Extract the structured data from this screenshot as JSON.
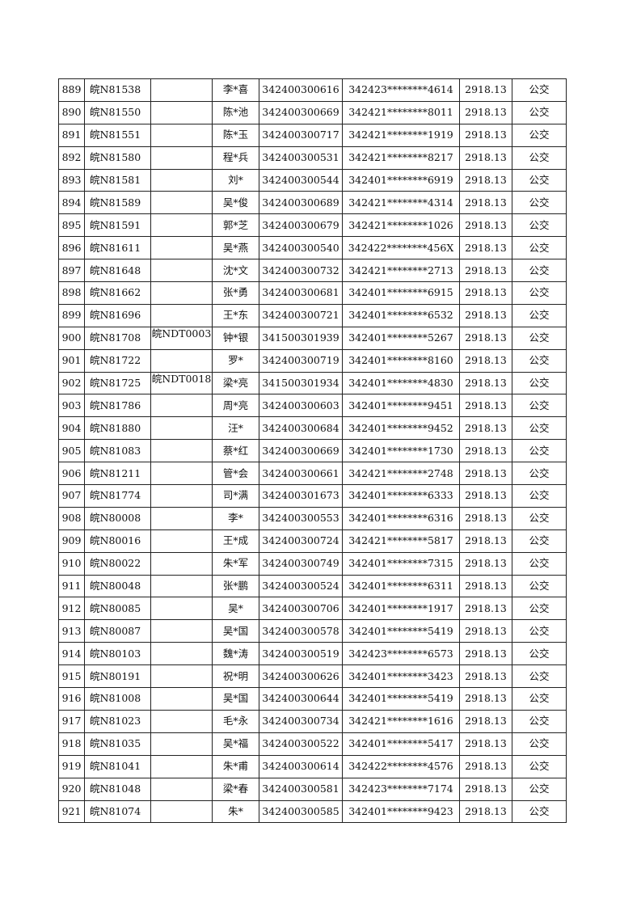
{
  "table": {
    "rows": [
      [
        "889",
        "皖N81538",
        "",
        "李*喜",
        "342400300616",
        "342423********4614",
        "2918.13",
        "公交"
      ],
      [
        "890",
        "皖N81550",
        "",
        "陈*池",
        "342400300669",
        "342421********8011",
        "2918.13",
        "公交"
      ],
      [
        "891",
        "皖N81551",
        "",
        "陈*玉",
        "342400300717",
        "342421********1919",
        "2918.13",
        "公交"
      ],
      [
        "892",
        "皖N81580",
        "",
        "程*兵",
        "342400300531",
        "342421********8217",
        "2918.13",
        "公交"
      ],
      [
        "893",
        "皖N81581",
        "",
        "刘*",
        "342400300544",
        "342401********6919",
        "2918.13",
        "公交"
      ],
      [
        "894",
        "皖N81589",
        "",
        "吴*俊",
        "342400300689",
        "342421********4314",
        "2918.13",
        "公交"
      ],
      [
        "895",
        "皖N81591",
        "",
        "郭*芝",
        "342400300679",
        "342421********1026",
        "2918.13",
        "公交"
      ],
      [
        "896",
        "皖N81611",
        "",
        "吴*燕",
        "342400300540",
        "342422********456X",
        "2918.13",
        "公交"
      ],
      [
        "897",
        "皖N81648",
        "",
        "沈*文",
        "342400300732",
        "342421********2713",
        "2918.13",
        "公交"
      ],
      [
        "898",
        "皖N81662",
        "",
        "张*勇",
        "342400300681",
        "342401********6915",
        "2918.13",
        "公交"
      ],
      [
        "899",
        "皖N81696",
        "",
        "王*东",
        "342400300721",
        "342401********6532",
        "2918.13",
        "公交"
      ],
      [
        "900",
        "皖N81708",
        "皖NDT0003",
        "钟*银",
        "341500301939",
        "342401********5267",
        "2918.13",
        "公交"
      ],
      [
        "901",
        "皖N81722",
        "",
        "罗*",
        "342400300719",
        "342401********8160",
        "2918.13",
        "公交"
      ],
      [
        "902",
        "皖N81725",
        "皖NDT0018",
        "梁*亮",
        "341500301934",
        "342401********4830",
        "2918.13",
        "公交"
      ],
      [
        "903",
        "皖N81786",
        "",
        "周*亮",
        "342400300603",
        "342401********9451",
        "2918.13",
        "公交"
      ],
      [
        "904",
        "皖N81880",
        "",
        "汪*",
        "342400300684",
        "342401********9452",
        "2918.13",
        "公交"
      ],
      [
        "905",
        "皖N81083",
        "",
        "蔡*红",
        "342400300669",
        "342401********1730",
        "2918.13",
        "公交"
      ],
      [
        "906",
        "皖N81211",
        "",
        "管*会",
        "342400300661",
        "342421********2748",
        "2918.13",
        "公交"
      ],
      [
        "907",
        "皖N81774",
        "",
        "司*满",
        "342400301673",
        "342401********6333",
        "2918.13",
        "公交"
      ],
      [
        "908",
        "皖N80008",
        "",
        "李*",
        "342400300553",
        "342401********6316",
        "2918.13",
        "公交"
      ],
      [
        "909",
        "皖N80016",
        "",
        "王*成",
        "342400300724",
        "342421********5817",
        "2918.13",
        "公交"
      ],
      [
        "910",
        "皖N80022",
        "",
        "朱*军",
        "342400300749",
        "342401********7315",
        "2918.13",
        "公交"
      ],
      [
        "911",
        "皖N80048",
        "",
        "张*鹏",
        "342400300524",
        "342401********6311",
        "2918.13",
        "公交"
      ],
      [
        "912",
        "皖N80085",
        "",
        "吴*",
        "342400300706",
        "342401********1917",
        "2918.13",
        "公交"
      ],
      [
        "913",
        "皖N80087",
        "",
        "吴*国",
        "342400300578",
        "342401********5419",
        "2918.13",
        "公交"
      ],
      [
        "914",
        "皖N80103",
        "",
        "魏*涛",
        "342400300519",
        "342423********6573",
        "2918.13",
        "公交"
      ],
      [
        "915",
        "皖N80191",
        "",
        "祝*明",
        "342400300626",
        "342401********3423",
        "2918.13",
        "公交"
      ],
      [
        "916",
        "皖N81008",
        "",
        "吴*国",
        "342400300644",
        "342401********5419",
        "2918.13",
        "公交"
      ],
      [
        "917",
        "皖N81023",
        "",
        "毛*永",
        "342400300734",
        "342421********1616",
        "2918.13",
        "公交"
      ],
      [
        "918",
        "皖N81035",
        "",
        "吴*福",
        "342400300522",
        "342401********5417",
        "2918.13",
        "公交"
      ],
      [
        "919",
        "皖N81041",
        "",
        "朱*甫",
        "342400300614",
        "342422********4576",
        "2918.13",
        "公交"
      ],
      [
        "920",
        "皖N81048",
        "",
        "梁*春",
        "342400300581",
        "342423********7174",
        "2918.13",
        "公交"
      ],
      [
        "921",
        "皖N81074",
        "",
        "朱*",
        "342400300585",
        "342401********9423",
        "2918.13",
        "公交"
      ]
    ]
  }
}
